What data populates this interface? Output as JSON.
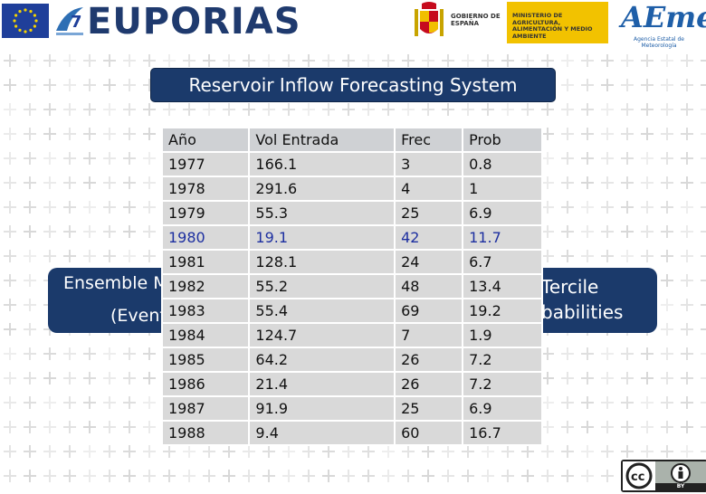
{
  "header": {
    "project_name": "EUPORIAS",
    "gov_label": "GOBIERNO DE ESPAÑA",
    "ministry_label": "MINISTERIO DE AGRICULTURA, ALIMENTACIÓN Y MEDIO AMBIENTE",
    "agency_logo_text": "AEmet",
    "agency_name": "Agencia Estatal de Meteorología",
    "fp7_icon": "fp7-logo-icon",
    "eu_flag_icon": "eu-flag-icon",
    "spain_shield_icon": "spain-coat-of-arms-icon"
  },
  "title": "Reservoir Inflow Forecasting System",
  "banner_behind_table": {
    "left_line1": "Ensemble M",
    "left_line2": "(Event",
    "right_line1": "Tercile",
    "right_line2": "babilities"
  },
  "table": {
    "headers": [
      "Año",
      "Vol Entrada",
      "Frec",
      "Prob"
    ],
    "rows": [
      [
        "1977",
        "166.1",
        "3",
        "0.8"
      ],
      [
        "1978",
        "291.6",
        "4",
        "1"
      ],
      [
        "1979",
        "55.3",
        "25",
        "6.9"
      ],
      [
        "1980",
        "19.1",
        "42",
        "11.7"
      ],
      [
        "1981",
        "128.1",
        "24",
        "6.7"
      ],
      [
        "1982",
        "55.2",
        "48",
        "13.4"
      ],
      [
        "1983",
        "55.4",
        "69",
        "19.2"
      ],
      [
        "1984",
        "124.7",
        "7",
        "1.9"
      ],
      [
        "1985",
        "64.2",
        "26",
        "7.2"
      ],
      [
        "1986",
        "21.4",
        "26",
        "7.2"
      ],
      [
        "1987",
        "91.9",
        "25",
        "6.9"
      ],
      [
        "1988",
        "9.4",
        "60",
        "16.7"
      ]
    ],
    "highlight_row": "1980",
    "highlight_color": "#1d2fa0"
  },
  "license": {
    "badge_icon": "creative-commons-by-icon",
    "label": "BY"
  },
  "colors": {
    "banner_bg": "#1b3a6b",
    "table_cell_bg": "#d9d9d9",
    "logo_blue": "#1f3a6e"
  }
}
